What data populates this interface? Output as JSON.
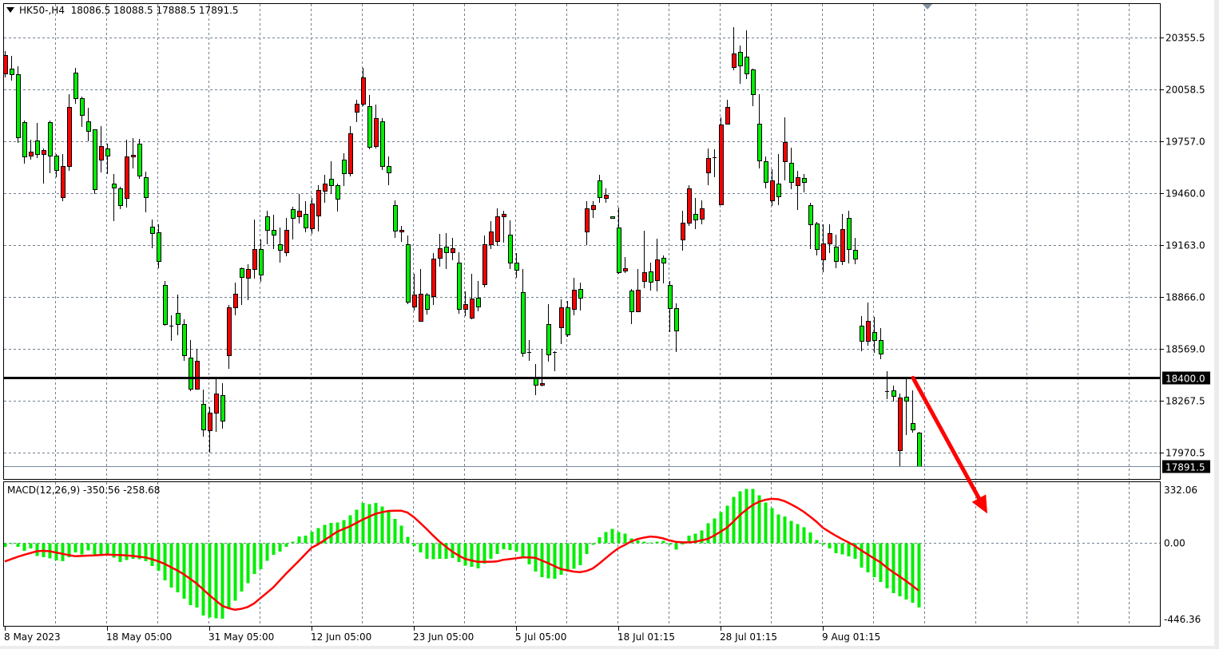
{
  "header": {
    "symbol_timeframe": "HK50-,H4",
    "ohlc": "18086.5 18088.5 17888.5 17891.5"
  },
  "macd_label": "MACD(12,26,9) -350.56 -258.68",
  "colors": {
    "up_candle": "#ff0000",
    "down_candle": "#00ee00",
    "grid": "#708090",
    "histogram": "#00ee00",
    "signal": "#ff0000",
    "level_line": "#000000",
    "arrow": "#ff0000"
  },
  "chart_data": [
    {
      "type": "candlestick",
      "symbol": "HK50-",
      "timeframe": "H4",
      "ylim": [
        17830.0,
        20540.0
      ],
      "y_ticks": [
        "20355.5",
        "20058.5",
        "19757.0",
        "19460.0",
        "19163.0",
        "18866.0",
        "18569.0",
        "18267.5",
        "17970.5"
      ],
      "x_ticks": [
        {
          "label": "8 May 2023",
          "bar": 1
        },
        {
          "label": "18 May 05:00",
          "bar": 17
        },
        {
          "label": "31 May 05:00",
          "bar": 33
        },
        {
          "label": "12 Jun 05:00",
          "bar": 49
        },
        {
          "label": "23 Jun 05:00",
          "bar": 65
        },
        {
          "label": "5 Jul 05:00",
          "bar": 81
        },
        {
          "label": "18 Jul 01:15",
          "bar": 97
        },
        {
          "label": "28 Jul 01:15",
          "bar": 113
        },
        {
          "label": "9 Aug 01:15",
          "bar": 129
        }
      ],
      "grid": true,
      "horizontal_level": {
        "value": 18400.0,
        "label": "18400.0"
      },
      "current_price": {
        "value": 17891.5,
        "label": "17891.5"
      },
      "annotation": {
        "type": "arrow",
        "direction": "down",
        "color": "#ff0000",
        "from": {
          "bar": 143,
          "price": 18400.0
        },
        "to": {
          "bar": 155,
          "price": 17620.0
        }
      },
      "ohlc_columns": [
        "open",
        "high",
        "low",
        "close"
      ],
      "candles": [
        [
          20148,
          20277,
          20124,
          20253
        ],
        [
          20176,
          20248,
          20109,
          20143
        ],
        [
          20143,
          20191,
          19749,
          19782
        ],
        [
          19869,
          19878,
          19629,
          19672
        ],
        [
          19677,
          19768,
          19653,
          19701
        ],
        [
          19763,
          19864,
          19662,
          19686
        ],
        [
          19686,
          19720,
          19518,
          19710
        ],
        [
          19869,
          19878,
          19576,
          19677
        ],
        [
          19677,
          19686,
          19552,
          19595
        ],
        [
          19437,
          19686,
          19413,
          19619
        ],
        [
          19619,
          20032,
          19590,
          19955
        ],
        [
          20152,
          20181,
          19975,
          20008
        ],
        [
          20008,
          20018,
          19840,
          19912
        ],
        [
          19874,
          19951,
          19758,
          19821
        ],
        [
          19826,
          19830,
          19456,
          19485
        ],
        [
          19653,
          19845,
          19581,
          19730
        ],
        [
          19720,
          19744,
          19571,
          19677
        ],
        [
          19514,
          19571,
          19302,
          19494
        ],
        [
          19490,
          19499,
          19369,
          19393
        ],
        [
          19432,
          19768,
          19379,
          19672
        ],
        [
          19672,
          19778,
          19605,
          19682
        ],
        [
          19744,
          19773,
          19542,
          19562
        ],
        [
          19552,
          19586,
          19350,
          19437
        ],
        [
          19269,
          19312,
          19144,
          19230
        ],
        [
          19235,
          19283,
          19028,
          19072
        ],
        [
          18932,
          18956,
          18702,
          18707
        ],
        [
          18702,
          18760,
          18611,
          18700
        ],
        [
          18774,
          18880,
          18644,
          18707
        ],
        [
          18707,
          18736,
          18500,
          18529
        ],
        [
          18515,
          18615,
          18322,
          18337
        ],
        [
          18337,
          18567,
          18332,
          18500
        ],
        [
          18250,
          18332,
          18063,
          18102
        ],
        [
          18097,
          18231,
          17972,
          18202
        ],
        [
          18198,
          18399,
          18092,
          18308
        ],
        [
          18303,
          18370,
          18106,
          18154
        ],
        [
          18529,
          18817,
          18452,
          18803
        ],
        [
          18803,
          18947,
          18760,
          18884
        ],
        [
          19028,
          19033,
          18817,
          18980
        ],
        [
          18976,
          19052,
          18846,
          19024
        ],
        [
          19024,
          19312,
          18971,
          19139
        ],
        [
          19139,
          19197,
          18952,
          18995
        ],
        [
          19326,
          19360,
          19168,
          19249
        ],
        [
          19249,
          19336,
          19139,
          19221
        ],
        [
          19168,
          19264,
          19062,
          19134
        ],
        [
          19120,
          19317,
          19100,
          19249
        ],
        [
          19369,
          19384,
          19197,
          19321
        ],
        [
          19326,
          19456,
          19288,
          19360
        ],
        [
          19341,
          19413,
          19235,
          19264
        ],
        [
          19259,
          19432,
          19225,
          19403
        ],
        [
          19331,
          19509,
          19240,
          19480
        ],
        [
          19475,
          19566,
          19408,
          19514
        ],
        [
          19542,
          19643,
          19456,
          19509
        ],
        [
          19509,
          19518,
          19355,
          19427
        ],
        [
          19653,
          19691,
          19504,
          19576
        ],
        [
          19576,
          19845,
          19557,
          19806
        ],
        [
          19927,
          19999,
          19869,
          19975
        ],
        [
          19975,
          20181,
          19960,
          20124
        ],
        [
          19960,
          20023,
          19715,
          19725
        ],
        [
          19730,
          19970,
          19720,
          19893
        ],
        [
          19874,
          19893,
          19595,
          19619
        ],
        [
          19619,
          19672,
          19509,
          19581
        ],
        [
          19393,
          19422,
          19206,
          19245
        ],
        [
          19240,
          19273,
          19182,
          19249
        ],
        [
          19168,
          19216,
          18822,
          18836
        ],
        [
          18812,
          19000,
          18788,
          18880
        ],
        [
          18726,
          19024,
          18726,
          18884
        ],
        [
          18880,
          18889,
          18764,
          18798
        ],
        [
          18870,
          19115,
          18817,
          19086
        ],
        [
          19091,
          19225,
          19038,
          19144
        ],
        [
          19153,
          19230,
          19024,
          19120
        ],
        [
          19120,
          19206,
          19076,
          19144
        ],
        [
          19062,
          19120,
          18769,
          18798
        ],
        [
          18798,
          18899,
          18755,
          18822
        ],
        [
          18745,
          19000,
          18736,
          18856
        ],
        [
          18860,
          18956,
          18783,
          18812
        ],
        [
          18937,
          19216,
          18918,
          19168
        ],
        [
          19168,
          19302,
          19139,
          19240
        ],
        [
          19187,
          19374,
          19158,
          19326
        ],
        [
          19326,
          19360,
          19177,
          19341
        ],
        [
          19221,
          19307,
          19024,
          19062
        ],
        [
          19062,
          19115,
          18976,
          19019
        ],
        [
          18894,
          19024,
          18519,
          18543
        ],
        [
          18548,
          18615,
          18500,
          18545
        ],
        [
          18404,
          18481,
          18303,
          18361
        ],
        [
          18361,
          18567,
          18351,
          18370
        ],
        [
          18707,
          18822,
          18495,
          18534
        ],
        [
          18548,
          18553,
          18438,
          18546
        ],
        [
          18692,
          18851,
          18596,
          18803
        ],
        [
          18803,
          18841,
          18635,
          18649
        ],
        [
          18798,
          18976,
          18760,
          18908
        ],
        [
          18913,
          18947,
          18788,
          18860
        ],
        [
          19240,
          19417,
          19163,
          19374
        ],
        [
          19369,
          19413,
          19317,
          19393
        ],
        [
          19533,
          19566,
          19408,
          19437
        ],
        [
          19432,
          19490,
          19408,
          19451
        ],
        [
          19330,
          19330,
          19321,
          19321
        ],
        [
          19262,
          19380,
          18998,
          19007
        ],
        [
          19017,
          19096,
          19002,
          19032
        ],
        [
          18900,
          18909,
          18709,
          18782
        ],
        [
          18782,
          19027,
          18777,
          18905
        ],
        [
          18958,
          19247,
          18914,
          19007
        ],
        [
          19012,
          19061,
          18900,
          18954
        ],
        [
          18963,
          19198,
          18895,
          19081
        ],
        [
          19091,
          19105,
          18944,
          19061
        ],
        [
          18934,
          18958,
          18665,
          18802
        ],
        [
          18802,
          18826,
          18547,
          18674
        ],
        [
          19193,
          19360,
          19130,
          19291
        ],
        [
          19291,
          19507,
          19272,
          19487
        ],
        [
          19340,
          19433,
          19257,
          19311
        ],
        [
          19316,
          19419,
          19282,
          19375
        ],
        [
          19580,
          19717,
          19507,
          19663
        ],
        [
          19668,
          19712,
          19551,
          19665
        ],
        [
          19399,
          19898,
          19394,
          19854
        ],
        [
          19859,
          19996,
          19854,
          19957
        ],
        [
          20187,
          20417,
          20168,
          20266
        ],
        [
          20275,
          20310,
          20089,
          20197
        ],
        [
          20246,
          20398,
          20119,
          20148
        ],
        [
          20173,
          20178,
          19962,
          20031
        ],
        [
          19859,
          20031,
          19605,
          19649
        ],
        [
          19644,
          19673,
          19487,
          19526
        ],
        [
          19419,
          19600,
          19389,
          19536
        ],
        [
          19517,
          19688,
          19394,
          19443
        ],
        [
          19644,
          19898,
          19536,
          19756
        ],
        [
          19634,
          19722,
          19482,
          19526
        ],
        [
          19507,
          19590,
          19365,
          19551
        ],
        [
          19546,
          19570,
          19468,
          19526
        ],
        [
          19394,
          19404,
          19140,
          19282
        ],
        [
          19287,
          19296,
          19105,
          19140
        ],
        [
          19081,
          19282,
          19007,
          19174
        ],
        [
          19174,
          19282,
          19115,
          19233
        ],
        [
          19154,
          19223,
          19032,
          19071
        ],
        [
          19071,
          19340,
          19047,
          19257
        ],
        [
          19321,
          19360,
          19056,
          19140
        ],
        [
          19135,
          19203,
          19051,
          19086
        ],
        [
          18699,
          18753,
          18552,
          18611
        ],
        [
          18611,
          18831,
          18586,
          18728
        ],
        [
          18665,
          18748,
          18542,
          18616
        ],
        [
          18616,
          18684,
          18508,
          18537
        ],
        [
          18322,
          18439,
          18278,
          18320
        ],
        [
          18327,
          18356,
          18263,
          18297
        ],
        [
          17984,
          18312,
          17886,
          18288
        ],
        [
          18293,
          18395,
          18072,
          18268
        ],
        [
          18141,
          18327,
          18087,
          18102
        ],
        [
          18086.5,
          18088.5,
          17888.5,
          17891.5
        ]
      ]
    },
    {
      "type": "bar+line",
      "indicator": "MACD(12,26,9)",
      "ylim": [
        -446.36,
        332.06
      ],
      "y_ticks": [
        "332.06",
        "0.00",
        "-446.36"
      ],
      "grid": true,
      "histogram_main": [
        -20,
        -4,
        -20,
        -42,
        -28,
        -71,
        -77,
        -83,
        -94,
        -99,
        -77,
        -51,
        -62,
        -39,
        -61,
        -71,
        -64,
        -80,
        -103,
        -93,
        -86,
        -88,
        -99,
        -125,
        -151,
        -203,
        -242,
        -268,
        -303,
        -338,
        -351,
        -394,
        -405,
        -409,
        -412,
        -358,
        -313,
        -264,
        -218,
        -168,
        -142,
        -97,
        -64,
        -46,
        -20,
        7,
        36,
        41,
        62,
        83,
        100,
        110,
        113,
        126,
        152,
        183,
        218,
        213,
        218,
        200,
        174,
        131,
        96,
        35,
        -16,
        -51,
        -86,
        -88,
        -86,
        -86,
        -81,
        -103,
        -122,
        -129,
        -138,
        -112,
        -86,
        -59,
        -33,
        -38,
        -46,
        -83,
        -116,
        -155,
        -186,
        -191,
        -194,
        -173,
        -155,
        -139,
        -120,
        -59,
        -10,
        32,
        61,
        78,
        61,
        52,
        25,
        15,
        9,
        4,
        9,
        13,
        -10,
        -35,
        -7,
        41,
        52,
        70,
        109,
        135,
        170,
        204,
        252,
        283,
        296,
        296,
        261,
        222,
        191,
        157,
        144,
        122,
        104,
        87,
        57,
        17,
        -10,
        -29,
        -55,
        -61,
        -73,
        -86,
        -133,
        -160,
        -186,
        -212,
        -247,
        -273,
        -290,
        -307,
        -325,
        -350.56
      ],
      "signal_line": [
        -100,
        -87,
        -75,
        -64,
        -54,
        -44,
        -42,
        -44,
        -51,
        -58,
        -65,
        -71,
        -70,
        -68,
        -67,
        -65,
        -62,
        -64,
        -65,
        -67,
        -70,
        -74,
        -78,
        -87,
        -99,
        -113,
        -131,
        -149,
        -170,
        -194,
        -220,
        -251,
        -283,
        -312,
        -341,
        -354,
        -363,
        -358,
        -348,
        -329,
        -300,
        -271,
        -242,
        -204,
        -167,
        -132,
        -97,
        -61,
        -25,
        -7,
        16,
        39,
        62,
        77,
        91,
        110,
        128,
        144,
        160,
        168,
        175,
        177,
        177,
        167,
        142,
        110,
        77,
        42,
        9,
        -19,
        -46,
        -67,
        -86,
        -94,
        -102,
        -102,
        -102,
        -100,
        -91,
        -87,
        -83,
        -78,
        -78,
        -80,
        -94,
        -109,
        -125,
        -141,
        -148,
        -155,
        -158,
        -152,
        -138,
        -112,
        -83,
        -54,
        -28,
        -10,
        9,
        22,
        30,
        36,
        33,
        26,
        15,
        7,
        4,
        4,
        7,
        15,
        23,
        41,
        62,
        84,
        117,
        152,
        181,
        207,
        225,
        236,
        241,
        239,
        229,
        212,
        193,
        171,
        145,
        117,
        84,
        62,
        41,
        22,
        4,
        -15,
        -39,
        -61,
        -83,
        -104,
        -133,
        -158,
        -181,
        -206,
        -231,
        -258.68
      ]
    }
  ]
}
